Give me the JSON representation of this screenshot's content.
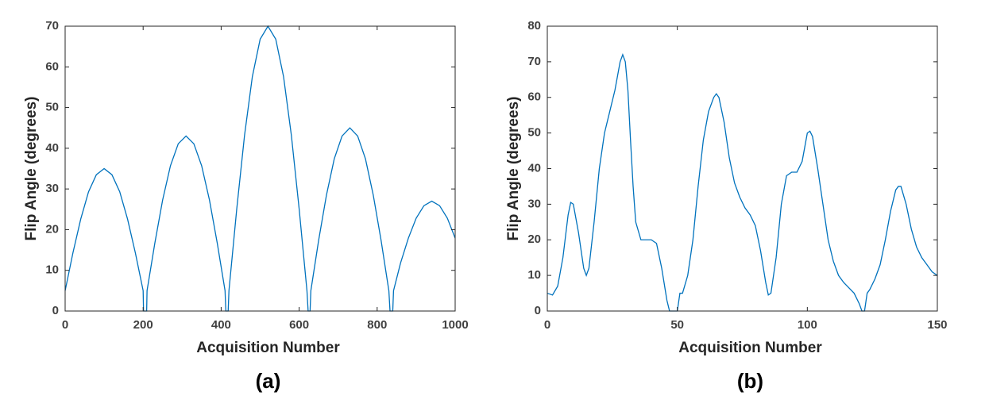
{
  "chart_data": [
    {
      "type": "line",
      "caption": "(a)",
      "x_label": "Acquisition Number",
      "y_label": "Flip Angle (degrees)",
      "color": "#0072bd",
      "x": [
        0,
        20,
        40,
        60,
        80,
        100,
        120,
        140,
        160,
        180,
        200,
        201,
        209,
        210,
        230,
        250,
        270,
        290,
        310,
        330,
        350,
        370,
        390,
        410,
        412,
        418,
        420,
        440,
        460,
        480,
        500,
        520,
        540,
        560,
        580,
        600,
        620,
        623,
        628,
        630,
        650,
        670,
        690,
        710,
        730,
        750,
        770,
        790,
        810,
        830,
        833,
        840,
        842,
        860,
        880,
        900,
        920,
        940,
        960,
        980,
        1000
      ],
      "values": [
        5,
        14.3,
        22.6,
        29.3,
        33.5,
        35,
        33.5,
        29.3,
        22.6,
        14.3,
        5,
        0,
        0,
        5,
        16.7,
        27.3,
        35.7,
        41.1,
        43,
        41.1,
        35.7,
        27.3,
        16.7,
        5,
        0,
        0,
        5,
        25.1,
        43.2,
        57.6,
        66.8,
        70,
        66.8,
        57.6,
        43.2,
        25.1,
        5,
        0,
        0,
        5,
        17.4,
        28.5,
        37.4,
        43,
        45,
        43,
        37.4,
        28.5,
        17.4,
        5,
        0,
        0,
        5,
        11.8,
        17.9,
        22.8,
        25.9,
        27,
        25.9,
        22.8,
        17.9
      ],
      "xlim": [
        0,
        1000
      ],
      "xticks": [
        0,
        200,
        400,
        600,
        800,
        1000
      ],
      "ylim": [
        0,
        70
      ],
      "yticks": [
        0,
        10,
        20,
        30,
        40,
        50,
        60,
        70
      ]
    },
    {
      "type": "line",
      "caption": "(b)",
      "x_label": "Acquisition Number",
      "y_label": "Flip Angle (degrees)",
      "color": "#0072bd",
      "x": [
        0,
        2,
        4,
        6,
        8,
        9,
        10,
        12,
        14,
        15,
        16,
        18,
        20,
        22,
        24,
        26,
        28,
        29,
        30,
        31,
        32,
        33,
        34,
        36,
        38,
        40,
        42,
        44,
        46,
        47,
        50,
        51,
        52,
        54,
        56,
        58,
        60,
        62,
        64,
        65,
        66,
        68,
        70,
        72,
        74,
        76,
        78,
        80,
        82,
        84,
        85,
        86,
        88,
        90,
        92,
        94,
        96,
        98,
        100,
        101,
        102,
        104,
        106,
        108,
        110,
        112,
        114,
        116,
        118,
        120,
        121,
        122,
        123,
        124,
        126,
        128,
        130,
        132,
        134,
        135,
        136,
        138,
        140,
        142,
        144,
        146,
        148,
        150
      ],
      "values": [
        5,
        4.5,
        7,
        15,
        27,
        30.5,
        30,
        22,
        12,
        10,
        12,
        25,
        40,
        50,
        56,
        62,
        70,
        72,
        70,
        62,
        48,
        35,
        25,
        20,
        20,
        20,
        19,
        12,
        3,
        0,
        0,
        5,
        5,
        10,
        20,
        35,
        48,
        56,
        60,
        61,
        60,
        53,
        43,
        36,
        32,
        29,
        27,
        24,
        17,
        8,
        4.5,
        5,
        15,
        30,
        38,
        39,
        39,
        42,
        50,
        50.5,
        49,
        40,
        30,
        20,
        14,
        10,
        8,
        6.5,
        5,
        2,
        0,
        0,
        5,
        6,
        9,
        13,
        20,
        28,
        34,
        35,
        35,
        30,
        23,
        18,
        15,
        13,
        11,
        10
      ],
      "xlim": [
        0,
        150
      ],
      "xticks": [
        0,
        50,
        100,
        150
      ],
      "ylim": [
        0,
        80
      ],
      "yticks": [
        0,
        10,
        20,
        30,
        40,
        50,
        60,
        70,
        80
      ]
    }
  ]
}
